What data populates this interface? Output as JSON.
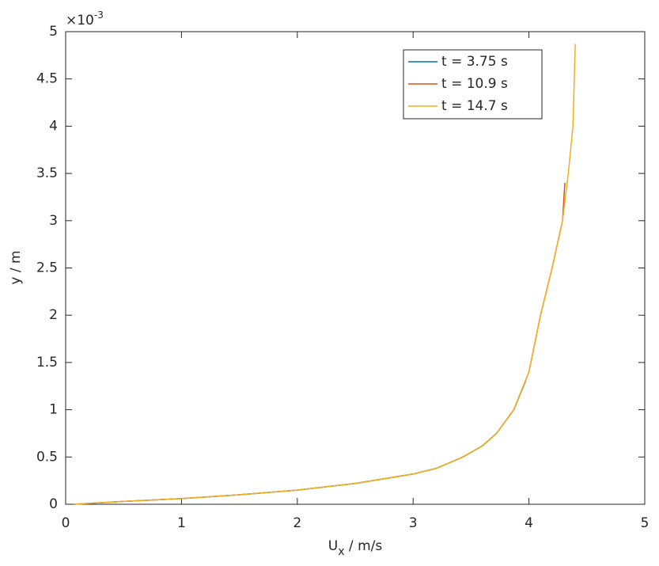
{
  "chart_data": {
    "type": "line",
    "xlabel": {
      "main": "U",
      "sub": "x",
      "rest": " / m/s"
    },
    "ylabel": "y / m",
    "y_multiplier": {
      "base": "×10",
      "exponent": "-3"
    },
    "xlim": [
      0,
      5
    ],
    "xticks": [
      0,
      1,
      2,
      3,
      4,
      5
    ],
    "ylim": [
      0,
      5
    ],
    "yticks": [
      0,
      0.5,
      1,
      1.5,
      2,
      2.5,
      3,
      3.5,
      4,
      4.5,
      5
    ],
    "legend": "upper right",
    "series": [
      {
        "name": "t = 3.75 s",
        "color": "#0072bd",
        "x": [
          0.07,
          0.5,
          1,
          1.5,
          2,
          2.5,
          3,
          3.2,
          3.43,
          3.6,
          3.72,
          3.87,
          3.97
        ],
        "values": [
          0,
          0.03,
          0.06,
          0.1,
          0.15,
          0.22,
          0.32,
          0.38,
          0.5,
          0.62,
          0.75,
          1.0,
          1.3
        ]
      },
      {
        "name": "t = 10.9 s",
        "color": "#d95319",
        "x": [
          0.07,
          0.5,
          1,
          1.5,
          2,
          2.5,
          3,
          3.2,
          3.43,
          3.6,
          3.72,
          3.87,
          4.0,
          4.1,
          4.2,
          4.29,
          4.31
        ],
        "values": [
          0,
          0.03,
          0.06,
          0.1,
          0.15,
          0.22,
          0.32,
          0.38,
          0.5,
          0.62,
          0.75,
          1.0,
          1.4,
          2.0,
          2.5,
          3.0,
          3.4
        ]
      },
      {
        "name": "t = 14.7 s",
        "color": "#edb120",
        "x": [
          0.07,
          0.5,
          1,
          1.5,
          2,
          2.5,
          3,
          3.2,
          3.43,
          3.6,
          3.72,
          3.87,
          4.0,
          4.1,
          4.2,
          4.29,
          4.34,
          4.38,
          4.4
        ],
        "values": [
          0,
          0.03,
          0.06,
          0.1,
          0.15,
          0.22,
          0.32,
          0.38,
          0.5,
          0.62,
          0.75,
          1.0,
          1.4,
          2.0,
          2.5,
          3.0,
          3.5,
          4.0,
          4.87
        ]
      }
    ]
  }
}
